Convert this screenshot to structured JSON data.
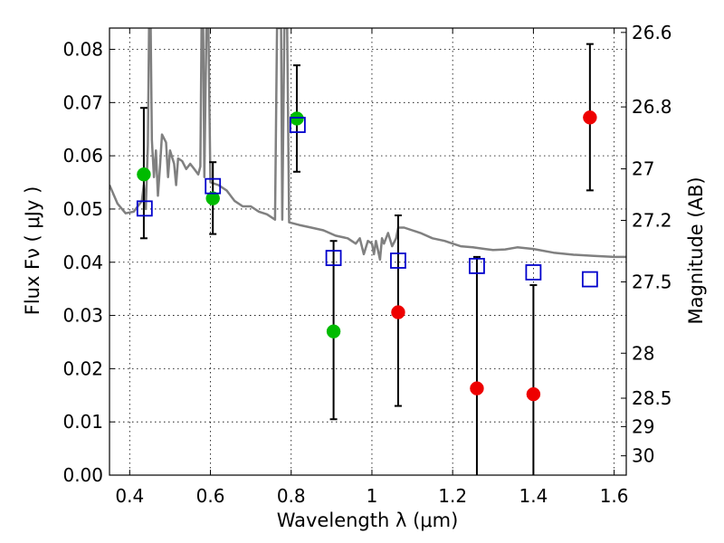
{
  "chart_data": {
    "type": "scatter",
    "title": "",
    "xlabel": "Wavelength  λ (μm)",
    "ylabel": "Flux  Fν  ( μJy )",
    "ylabel_right": "Magnitude (AB)",
    "xlim": [
      0.35,
      1.63
    ],
    "ylim": [
      0.0,
      0.084
    ],
    "grid": true,
    "x_ticks": [
      {
        "value": 0.4,
        "label": "0.4"
      },
      {
        "value": 0.6,
        "label": "0.6"
      },
      {
        "value": 0.8,
        "label": "0.8"
      },
      {
        "value": 1.0,
        "label": "1"
      },
      {
        "value": 1.2,
        "label": "1.2"
      },
      {
        "value": 1.4,
        "label": "1.4"
      },
      {
        "value": 1.6,
        "label": "1.6"
      }
    ],
    "y_ticks": [
      {
        "value": 0.0,
        "label": "0.00"
      },
      {
        "value": 0.01,
        "label": "0.01"
      },
      {
        "value": 0.02,
        "label": "0.02"
      },
      {
        "value": 0.03,
        "label": "0.03"
      },
      {
        "value": 0.04,
        "label": "0.04"
      },
      {
        "value": 0.05,
        "label": "0.05"
      },
      {
        "value": 0.06,
        "label": "0.06"
      },
      {
        "value": 0.07,
        "label": "0.07"
      },
      {
        "value": 0.08,
        "label": "0.08"
      }
    ],
    "right_ticks": [
      {
        "value": 26.6,
        "label": "26.6"
      },
      {
        "value": 26.8,
        "label": "26.8"
      },
      {
        "value": 27.0,
        "label": "27"
      },
      {
        "value": 27.2,
        "label": "27.2"
      },
      {
        "value": 27.5,
        "label": "27.5"
      },
      {
        "value": 28.0,
        "label": "28"
      },
      {
        "value": 28.5,
        "label": "28.5"
      },
      {
        "value": 29.0,
        "label": "29"
      },
      {
        "value": 30.0,
        "label": "30"
      }
    ],
    "model_spectrum": {
      "color": "#808080",
      "points": [
        [
          0.35,
          0.0545
        ],
        [
          0.37,
          0.051
        ],
        [
          0.39,
          0.0492
        ],
        [
          0.41,
          0.0495
        ],
        [
          0.42,
          0.0505
        ],
        [
          0.43,
          0.0515
        ],
        [
          0.435,
          0.0545
        ],
        [
          0.44,
          0.05
        ],
        [
          0.445,
          0.062
        ],
        [
          0.448,
          0.084
        ],
        [
          0.452,
          0.084
        ],
        [
          0.455,
          0.063
        ],
        [
          0.46,
          0.056
        ],
        [
          0.465,
          0.061
        ],
        [
          0.47,
          0.0525
        ],
        [
          0.475,
          0.058
        ],
        [
          0.48,
          0.064
        ],
        [
          0.49,
          0.0625
        ],
        [
          0.495,
          0.056
        ],
        [
          0.5,
          0.061
        ],
        [
          0.51,
          0.0585
        ],
        [
          0.515,
          0.0545
        ],
        [
          0.52,
          0.0595
        ],
        [
          0.53,
          0.059
        ],
        [
          0.54,
          0.0575
        ],
        [
          0.55,
          0.0585
        ],
        [
          0.56,
          0.0575
        ],
        [
          0.57,
          0.0565
        ],
        [
          0.575,
          0.058
        ],
        [
          0.578,
          0.084
        ],
        [
          0.582,
          0.084
        ],
        [
          0.585,
          0.056
        ],
        [
          0.59,
          0.084
        ],
        [
          0.595,
          0.084
        ],
        [
          0.6,
          0.055
        ],
        [
          0.62,
          0.0545
        ],
        [
          0.64,
          0.0535
        ],
        [
          0.66,
          0.0515
        ],
        [
          0.68,
          0.0505
        ],
        [
          0.7,
          0.0505
        ],
        [
          0.72,
          0.0495
        ],
        [
          0.74,
          0.049
        ],
        [
          0.76,
          0.048
        ],
        [
          0.765,
          0.084
        ],
        [
          0.775,
          0.084
        ],
        [
          0.778,
          0.048
        ],
        [
          0.783,
          0.084
        ],
        [
          0.79,
          0.084
        ],
        [
          0.795,
          0.0475
        ],
        [
          0.82,
          0.047
        ],
        [
          0.85,
          0.0465
        ],
        [
          0.88,
          0.046
        ],
        [
          0.91,
          0.045
        ],
        [
          0.94,
          0.0445
        ],
        [
          0.96,
          0.0435
        ],
        [
          0.97,
          0.0445
        ],
        [
          0.98,
          0.0415
        ],
        [
          0.99,
          0.044
        ],
        [
          1.0,
          0.0435
        ],
        [
          1.005,
          0.0415
        ],
        [
          1.01,
          0.044
        ],
        [
          1.02,
          0.0405
        ],
        [
          1.025,
          0.0445
        ],
        [
          1.03,
          0.0435
        ],
        [
          1.04,
          0.0455
        ],
        [
          1.05,
          0.043
        ],
        [
          1.06,
          0.0445
        ],
        [
          1.065,
          0.0465
        ],
        [
          1.08,
          0.0465
        ],
        [
          1.1,
          0.046
        ],
        [
          1.12,
          0.0455
        ],
        [
          1.15,
          0.0445
        ],
        [
          1.18,
          0.044
        ],
        [
          1.2,
          0.0435
        ],
        [
          1.22,
          0.043
        ],
        [
          1.25,
          0.0428
        ],
        [
          1.28,
          0.0425
        ],
        [
          1.3,
          0.0423
        ],
        [
          1.33,
          0.0424
        ],
        [
          1.36,
          0.0428
        ],
        [
          1.4,
          0.0425
        ],
        [
          1.45,
          0.0418
        ],
        [
          1.5,
          0.0414
        ],
        [
          1.55,
          0.0412
        ],
        [
          1.6,
          0.041
        ],
        [
          1.63,
          0.041
        ]
      ]
    },
    "series": [
      {
        "marker": "circle",
        "color": "#00bb00",
        "points": [
          {
            "x": 0.435,
            "y": 0.0565,
            "err_low": 0.0445,
            "err_high": 0.069
          },
          {
            "x": 0.606,
            "y": 0.052,
            "err_low": 0.0453,
            "err_high": 0.0588
          },
          {
            "x": 0.814,
            "y": 0.067,
            "err_low": 0.057,
            "err_high": 0.077
          },
          {
            "x": 0.905,
            "y": 0.027,
            "err_low": 0.0105,
            "err_high": 0.044
          }
        ]
      },
      {
        "marker": "circle",
        "color": "#ee0000",
        "points": [
          {
            "x": 1.065,
            "y": 0.0306,
            "err_low": 0.013,
            "err_high": 0.0488
          },
          {
            "x": 1.26,
            "y": 0.0163,
            "err_low": 0.0,
            "err_high": 0.041
          },
          {
            "x": 1.4,
            "y": 0.0152,
            "err_low": 0.0,
            "err_high": 0.0357
          },
          {
            "x": 1.54,
            "y": 0.0672,
            "err_low": 0.0535,
            "err_high": 0.081
          }
        ]
      },
      {
        "marker": "square",
        "color": "#0000cc",
        "points": [
          {
            "x": 0.437,
            "y": 0.0501
          },
          {
            "x": 0.606,
            "y": 0.0543
          },
          {
            "x": 0.816,
            "y": 0.0658
          },
          {
            "x": 0.905,
            "y": 0.0408
          },
          {
            "x": 1.065,
            "y": 0.0403
          },
          {
            "x": 1.26,
            "y": 0.0393
          },
          {
            "x": 1.4,
            "y": 0.0381
          },
          {
            "x": 1.54,
            "y": 0.0368
          }
        ]
      }
    ]
  }
}
